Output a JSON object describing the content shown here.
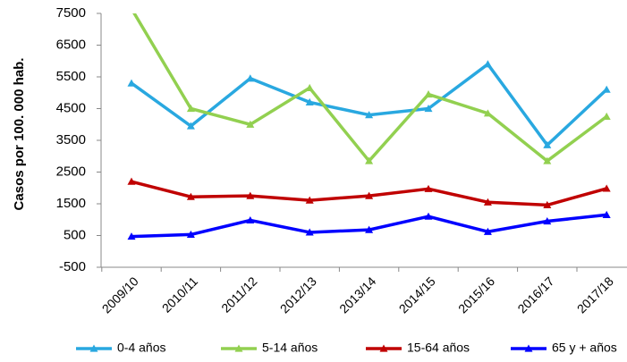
{
  "chart_data": {
    "type": "line",
    "y_label": "Casos por 100. 000 hab.",
    "categories": [
      "2009/10",
      "2010/11",
      "2011/12",
      "2012/13",
      "2013/14",
      "2014/15",
      "2015/16",
      "2016/17",
      "2017/18"
    ],
    "series": [
      {
        "name": "0-4 años",
        "color": "#29a8e0",
        "values": [
          5300,
          3950,
          5450,
          4700,
          4300,
          4500,
          5900,
          3350,
          5100
        ]
      },
      {
        "name": "5-14 años",
        "color": "#92d050",
        "values": [
          7650,
          4500,
          4000,
          5150,
          2850,
          4950,
          4350,
          2850,
          4250
        ]
      },
      {
        "name": "15-64 años",
        "color": "#c00000",
        "values": [
          2200,
          1720,
          1750,
          1610,
          1750,
          1970,
          1550,
          1460,
          1980
        ]
      },
      {
        "name": "65 y + años",
        "color": "#0000ff",
        "values": [
          470,
          530,
          980,
          600,
          680,
          1100,
          620,
          950,
          1150
        ]
      }
    ],
    "ylim": [
      -500,
      7500
    ],
    "yticks": [
      -500,
      500,
      1500,
      2500,
      3500,
      4500,
      5500,
      6500,
      7500
    ],
    "grid": false,
    "legend": "bottom"
  }
}
